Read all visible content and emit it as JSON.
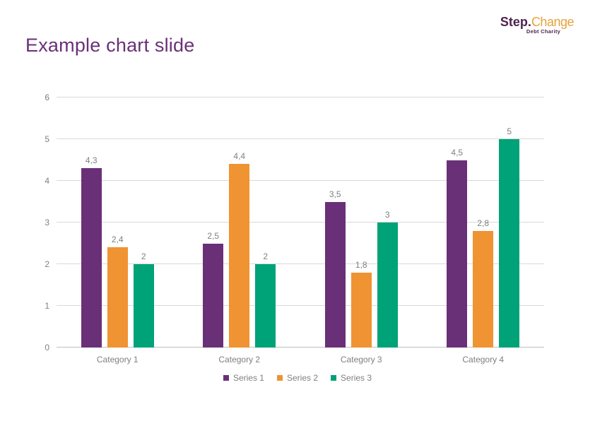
{
  "slide": {
    "title": "Example chart slide",
    "logo": {
      "part1": "Step",
      "dot": ".",
      "part2": "Change",
      "tagline": "Debt Charity"
    }
  },
  "colors": {
    "title_text": "#6A3077",
    "series1": "#6A3077",
    "series2": "#F09332",
    "series3": "#00A278",
    "gridline": "#D9D9D9",
    "axis_line": "#BFBFBF",
    "label_text": "#7F7F7F",
    "logo_purple": "#4E234F",
    "logo_orange": "#E8A23C"
  },
  "chart_data": {
    "type": "bar",
    "title": "",
    "xlabel": "",
    "ylabel": "",
    "categories": [
      "Category 1",
      "Category 2",
      "Category 3",
      "Category 4"
    ],
    "series": [
      {
        "name": "Series 1",
        "color_key": "series1",
        "values": [
          4.3,
          2.5,
          3.5,
          4.5
        ],
        "labels": [
          "4,3",
          "2,5",
          "3,5",
          "4,5"
        ]
      },
      {
        "name": "Series 2",
        "color_key": "series2",
        "values": [
          2.4,
          4.4,
          1.8,
          2.8
        ],
        "labels": [
          "2,4",
          "4,4",
          "1,8",
          "2,8"
        ]
      },
      {
        "name": "Series 3",
        "color_key": "series3",
        "values": [
          2,
          2,
          3,
          5
        ],
        "labels": [
          "2",
          "2",
          "3",
          "5"
        ]
      }
    ],
    "y_ticks": [
      0,
      1,
      2,
      3,
      4,
      5,
      6
    ],
    "ylim": [
      0,
      6
    ],
    "grid": true,
    "legend_position": "bottom",
    "decimal_separator": ","
  }
}
